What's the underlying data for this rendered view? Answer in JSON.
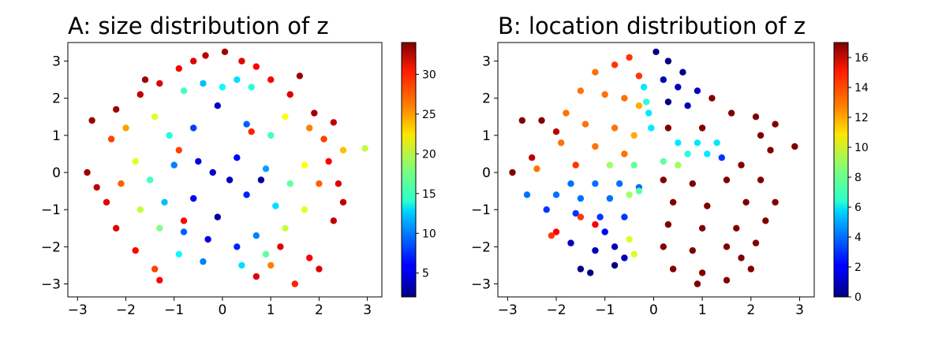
{
  "chart_data": [
    {
      "id": "A",
      "type": "scatter",
      "title": "A: size distribution of z",
      "xlabel": "",
      "ylabel": "",
      "xlim": [
        -3.2,
        3.3
      ],
      "ylim": [
        -3.35,
        3.5
      ],
      "xticks": [
        -3,
        -2,
        -1,
        0,
        1,
        2,
        3
      ],
      "yticks": [
        -3,
        -2,
        -1,
        0,
        1,
        2,
        3
      ],
      "xtick_labels": [
        "−3",
        "−2",
        "−1",
        "0",
        "1",
        "2",
        "3"
      ],
      "ytick_labels": [
        "−3",
        "−2",
        "−1",
        "0",
        "1",
        "2",
        "3"
      ],
      "grid": false,
      "colormap": "jet",
      "colorbar": {
        "range": [
          2,
          34
        ],
        "ticks": [
          5,
          10,
          15,
          20,
          25,
          30
        ],
        "tick_labels": [
          "5",
          "10",
          "15",
          "20",
          "25",
          "30"
        ]
      },
      "points_description_source": "approximate sample read from the scatter; values are size (colour)",
      "points": [
        [
          -0.35,
          3.15,
          32
        ],
        [
          0.05,
          3.25,
          33
        ],
        [
          -0.6,
          3.0,
          31
        ],
        [
          0.4,
          3.0,
          31
        ],
        [
          -0.9,
          2.8,
          30
        ],
        [
          0.7,
          2.85,
          30
        ],
        [
          -1.3,
          2.4,
          31
        ],
        [
          1.0,
          2.5,
          30
        ],
        [
          -1.7,
          2.1,
          32
        ],
        [
          1.4,
          2.1,
          31
        ],
        [
          -2.2,
          1.7,
          33
        ],
        [
          1.9,
          1.6,
          33
        ],
        [
          -2.7,
          1.4,
          33
        ],
        [
          2.3,
          1.35,
          32
        ],
        [
          -2.8,
          0.0,
          33
        ],
        [
          2.5,
          0.6,
          24
        ],
        [
          2.95,
          0.65,
          20
        ],
        [
          2.2,
          0.3,
          30
        ],
        [
          -2.6,
          -0.4,
          32
        ],
        [
          2.4,
          -0.3,
          31
        ],
        [
          -2.4,
          -0.8,
          31
        ],
        [
          2.5,
          -0.8,
          32
        ],
        [
          -2.2,
          -1.5,
          31
        ],
        [
          2.3,
          -1.3,
          32
        ],
        [
          -1.8,
          -2.1,
          30
        ],
        [
          1.2,
          -2.0,
          31
        ],
        [
          -1.4,
          -2.6,
          28
        ],
        [
          1.8,
          -2.3,
          30
        ],
        [
          -1.3,
          -2.9,
          30
        ],
        [
          1.5,
          -3.0,
          29
        ],
        [
          2.0,
          -2.6,
          31
        ],
        [
          1.0,
          -2.5,
          26
        ],
        [
          0.7,
          -2.8,
          31
        ],
        [
          -0.8,
          2.2,
          16
        ],
        [
          0.6,
          2.3,
          15
        ],
        [
          -0.4,
          2.4,
          12
        ],
        [
          0.3,
          2.5,
          13
        ],
        [
          -1.4,
          1.5,
          21
        ],
        [
          1.3,
          1.5,
          22
        ],
        [
          -1.1,
          1.0,
          15
        ],
        [
          1.0,
          1.0,
          16
        ],
        [
          -0.6,
          1.2,
          8
        ],
        [
          0.5,
          1.3,
          9
        ],
        [
          -1.8,
          0.3,
          21
        ],
        [
          1.7,
          0.2,
          22
        ],
        [
          -1.5,
          -0.2,
          16
        ],
        [
          1.4,
          -0.3,
          17
        ],
        [
          -1.0,
          0.2,
          10
        ],
        [
          0.9,
          0.1,
          11
        ],
        [
          -0.5,
          0.3,
          5
        ],
        [
          0.3,
          0.4,
          6
        ],
        [
          -0.2,
          0.0,
          4
        ],
        [
          0.15,
          -0.2,
          4
        ],
        [
          -0.6,
          -0.7,
          6
        ],
        [
          0.5,
          -0.6,
          7
        ],
        [
          -1.2,
          -0.8,
          12
        ],
        [
          1.1,
          -0.9,
          13
        ],
        [
          -1.7,
          -1.0,
          20
        ],
        [
          1.7,
          -1.0,
          21
        ],
        [
          -1.3,
          -1.5,
          18
        ],
        [
          1.3,
          -1.5,
          20
        ],
        [
          -0.8,
          -1.6,
          9
        ],
        [
          0.7,
          -1.7,
          10
        ],
        [
          -0.3,
          -1.8,
          5
        ],
        [
          0.3,
          -2.0,
          7
        ],
        [
          -0.4,
          -2.4,
          10
        ],
        [
          0.4,
          -2.5,
          13
        ],
        [
          -0.9,
          -2.2,
          14
        ],
        [
          0.9,
          -2.2,
          17
        ],
        [
          -0.1,
          1.8,
          4
        ],
        [
          0.0,
          2.3,
          14
        ],
        [
          -2.3,
          0.9,
          28
        ],
        [
          2.1,
          0.9,
          28
        ],
        [
          -2.1,
          -0.3,
          27
        ],
        [
          2.0,
          -0.3,
          27
        ],
        [
          -2.0,
          1.2,
          25
        ],
        [
          1.8,
          1.2,
          26
        ],
        [
          -0.8,
          -1.3,
          30
        ],
        [
          -0.9,
          0.6,
          28
        ],
        [
          0.6,
          1.1,
          29
        ],
        [
          -1.6,
          2.5,
          33
        ],
        [
          1.6,
          2.6,
          33
        ],
        [
          0.8,
          -0.2,
          3
        ],
        [
          -0.1,
          -1.2,
          3
        ]
      ]
    },
    {
      "id": "B",
      "type": "scatter",
      "title": "B: location distribution of z",
      "xlabel": "",
      "ylabel": "",
      "xlim": [
        -3.2,
        3.3
      ],
      "ylim": [
        -3.35,
        3.5
      ],
      "xticks": [
        -3,
        -2,
        -1,
        0,
        1,
        2,
        3
      ],
      "yticks": [
        -3,
        -2,
        -1,
        0,
        1,
        2,
        3
      ],
      "xtick_labels": [
        "−3",
        "−2",
        "−1",
        "0",
        "1",
        "2",
        "3"
      ],
      "ytick_labels": [
        "−3",
        "−2",
        "−1",
        "0",
        "1",
        "2",
        "3"
      ],
      "grid": false,
      "colormap": "jet",
      "colorbar": {
        "range": [
          0,
          17
        ],
        "ticks": [
          0,
          2,
          4,
          6,
          8,
          10,
          12,
          14,
          16
        ],
        "tick_labels": [
          "0",
          "2",
          "4",
          "6",
          "8",
          "10",
          "12",
          "14",
          "16"
        ]
      },
      "points_description_source": "approximate sample read from the scatter; values are location index (colour)",
      "points": [
        [
          -0.5,
          3.1,
          14
        ],
        [
          -0.8,
          2.9,
          14
        ],
        [
          -1.2,
          2.7,
          13
        ],
        [
          -0.3,
          2.6,
          14
        ],
        [
          -1.5,
          2.2,
          13
        ],
        [
          -1.0,
          2.1,
          13
        ],
        [
          -0.6,
          2.0,
          13
        ],
        [
          -0.3,
          1.8,
          12
        ],
        [
          -1.8,
          1.6,
          13
        ],
        [
          -1.4,
          1.3,
          13
        ],
        [
          -0.8,
          1.2,
          13
        ],
        [
          -0.4,
          1.0,
          12
        ],
        [
          -1.9,
          0.8,
          13
        ],
        [
          -1.2,
          0.7,
          13
        ],
        [
          -0.6,
          0.5,
          13
        ],
        [
          -2.3,
          1.4,
          17
        ],
        [
          -2.7,
          1.4,
          17
        ],
        [
          -2.0,
          1.1,
          16
        ],
        [
          -2.9,
          0.0,
          17
        ],
        [
          -2.5,
          0.4,
          16
        ],
        [
          -2.4,
          0.1,
          13
        ],
        [
          -1.6,
          0.2,
          14
        ],
        [
          -0.9,
          0.2,
          9
        ],
        [
          -0.4,
          0.2,
          8
        ],
        [
          -1.7,
          -0.3,
          4
        ],
        [
          -1.2,
          -0.3,
          4
        ],
        [
          -0.7,
          -0.3,
          4
        ],
        [
          -0.3,
          -0.4,
          4
        ],
        [
          -2.6,
          -0.6,
          4
        ],
        [
          -2.0,
          -0.6,
          4
        ],
        [
          -1.5,
          -0.7,
          4
        ],
        [
          -0.9,
          -0.7,
          4
        ],
        [
          -0.5,
          -0.6,
          9
        ],
        [
          -0.3,
          -0.5,
          8
        ],
        [
          -2.2,
          -1.0,
          3
        ],
        [
          -1.6,
          -1.1,
          3
        ],
        [
          -1.1,
          -1.2,
          3
        ],
        [
          -0.6,
          -1.2,
          3
        ],
        [
          -1.5,
          -1.2,
          14
        ],
        [
          -1.2,
          -1.4,
          15
        ],
        [
          -2.0,
          -1.6,
          15
        ],
        [
          -2.1,
          -1.7,
          14
        ],
        [
          -1.0,
          -1.6,
          2
        ],
        [
          -0.5,
          -1.8,
          10
        ],
        [
          -1.7,
          -1.9,
          1
        ],
        [
          -1.2,
          -2.1,
          1
        ],
        [
          -0.8,
          -2.0,
          1
        ],
        [
          -0.4,
          -2.2,
          10
        ],
        [
          -1.5,
          -2.6,
          0
        ],
        [
          -1.3,
          -2.7,
          0
        ],
        [
          -0.8,
          -2.5,
          0
        ],
        [
          -0.6,
          -2.3,
          1
        ],
        [
          -0.2,
          2.3,
          6
        ],
        [
          -0.15,
          1.9,
          7
        ],
        [
          -0.1,
          1.6,
          6
        ],
        [
          -0.05,
          1.2,
          6
        ],
        [
          0.05,
          3.25,
          0
        ],
        [
          0.3,
          3.0,
          0
        ],
        [
          0.6,
          2.7,
          0
        ],
        [
          0.2,
          2.5,
          1
        ],
        [
          0.5,
          2.3,
          1
        ],
        [
          0.9,
          2.2,
          1
        ],
        [
          0.3,
          1.9,
          0
        ],
        [
          0.7,
          1.8,
          1
        ],
        [
          1.2,
          2.0,
          17
        ],
        [
          1.6,
          1.6,
          17
        ],
        [
          2.1,
          1.5,
          17
        ],
        [
          2.5,
          1.3,
          17
        ],
        [
          2.9,
          0.7,
          17
        ],
        [
          2.4,
          0.6,
          17
        ],
        [
          0.5,
          0.8,
          6
        ],
        [
          0.9,
          0.8,
          6
        ],
        [
          1.3,
          0.8,
          6
        ],
        [
          0.7,
          0.5,
          7
        ],
        [
          1.1,
          0.5,
          6
        ],
        [
          0.2,
          0.3,
          8
        ],
        [
          0.5,
          0.2,
          9
        ],
        [
          1.4,
          0.4,
          3
        ],
        [
          0.3,
          1.2,
          17
        ],
        [
          1.0,
          1.2,
          17
        ],
        [
          0.2,
          -0.2,
          17
        ],
        [
          0.8,
          -0.3,
          17
        ],
        [
          1.5,
          -0.2,
          17
        ],
        [
          2.2,
          -0.2,
          17
        ],
        [
          0.4,
          -0.8,
          17
        ],
        [
          1.1,
          -0.9,
          17
        ],
        [
          1.9,
          -0.8,
          17
        ],
        [
          2.5,
          -0.8,
          17
        ],
        [
          0.3,
          -1.4,
          17
        ],
        [
          1.0,
          -1.5,
          17
        ],
        [
          1.7,
          -1.5,
          17
        ],
        [
          2.3,
          -1.3,
          17
        ],
        [
          0.2,
          -2.0,
          17
        ],
        [
          0.8,
          -2.1,
          17
        ],
        [
          1.5,
          -2.0,
          17
        ],
        [
          2.1,
          -1.9,
          17
        ],
        [
          0.4,
          -2.6,
          17
        ],
        [
          1.0,
          -2.7,
          17
        ],
        [
          1.5,
          -2.9,
          17
        ],
        [
          2.0,
          -2.6,
          17
        ],
        [
          1.8,
          -2.3,
          17
        ],
        [
          0.9,
          -3.0,
          17
        ],
        [
          2.2,
          1.0,
          17
        ],
        [
          1.8,
          0.2,
          17
        ]
      ]
    }
  ]
}
